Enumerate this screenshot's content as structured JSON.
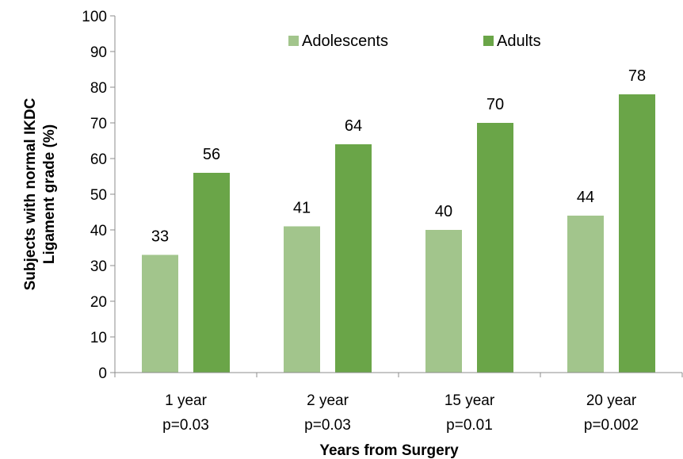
{
  "chart_data": {
    "type": "bar",
    "categories": [
      "1 year",
      "2 year",
      "15 year",
      "20 year"
    ],
    "category_sublabels": [
      "p=0.03",
      "p=0.03",
      "p=0.01",
      "p=0.002"
    ],
    "series": [
      {
        "name": "Adolescents",
        "values": [
          33,
          41,
          40,
          44
        ],
        "color": "#a2c58c"
      },
      {
        "name": "Adults",
        "values": [
          56,
          64,
          70,
          78
        ],
        "color": "#6aa548"
      }
    ],
    "xlabel": "Years from Surgery",
    "ylabel_lines": [
      "Subjects with normal IKDC",
      "Ligament  grade (%)"
    ],
    "ylim": [
      0,
      100
    ],
    "yticks": [
      0,
      10,
      20,
      30,
      40,
      50,
      60,
      70,
      80,
      90,
      100
    ],
    "grid": false,
    "legend_position": "top-center",
    "data_labels": true
  }
}
